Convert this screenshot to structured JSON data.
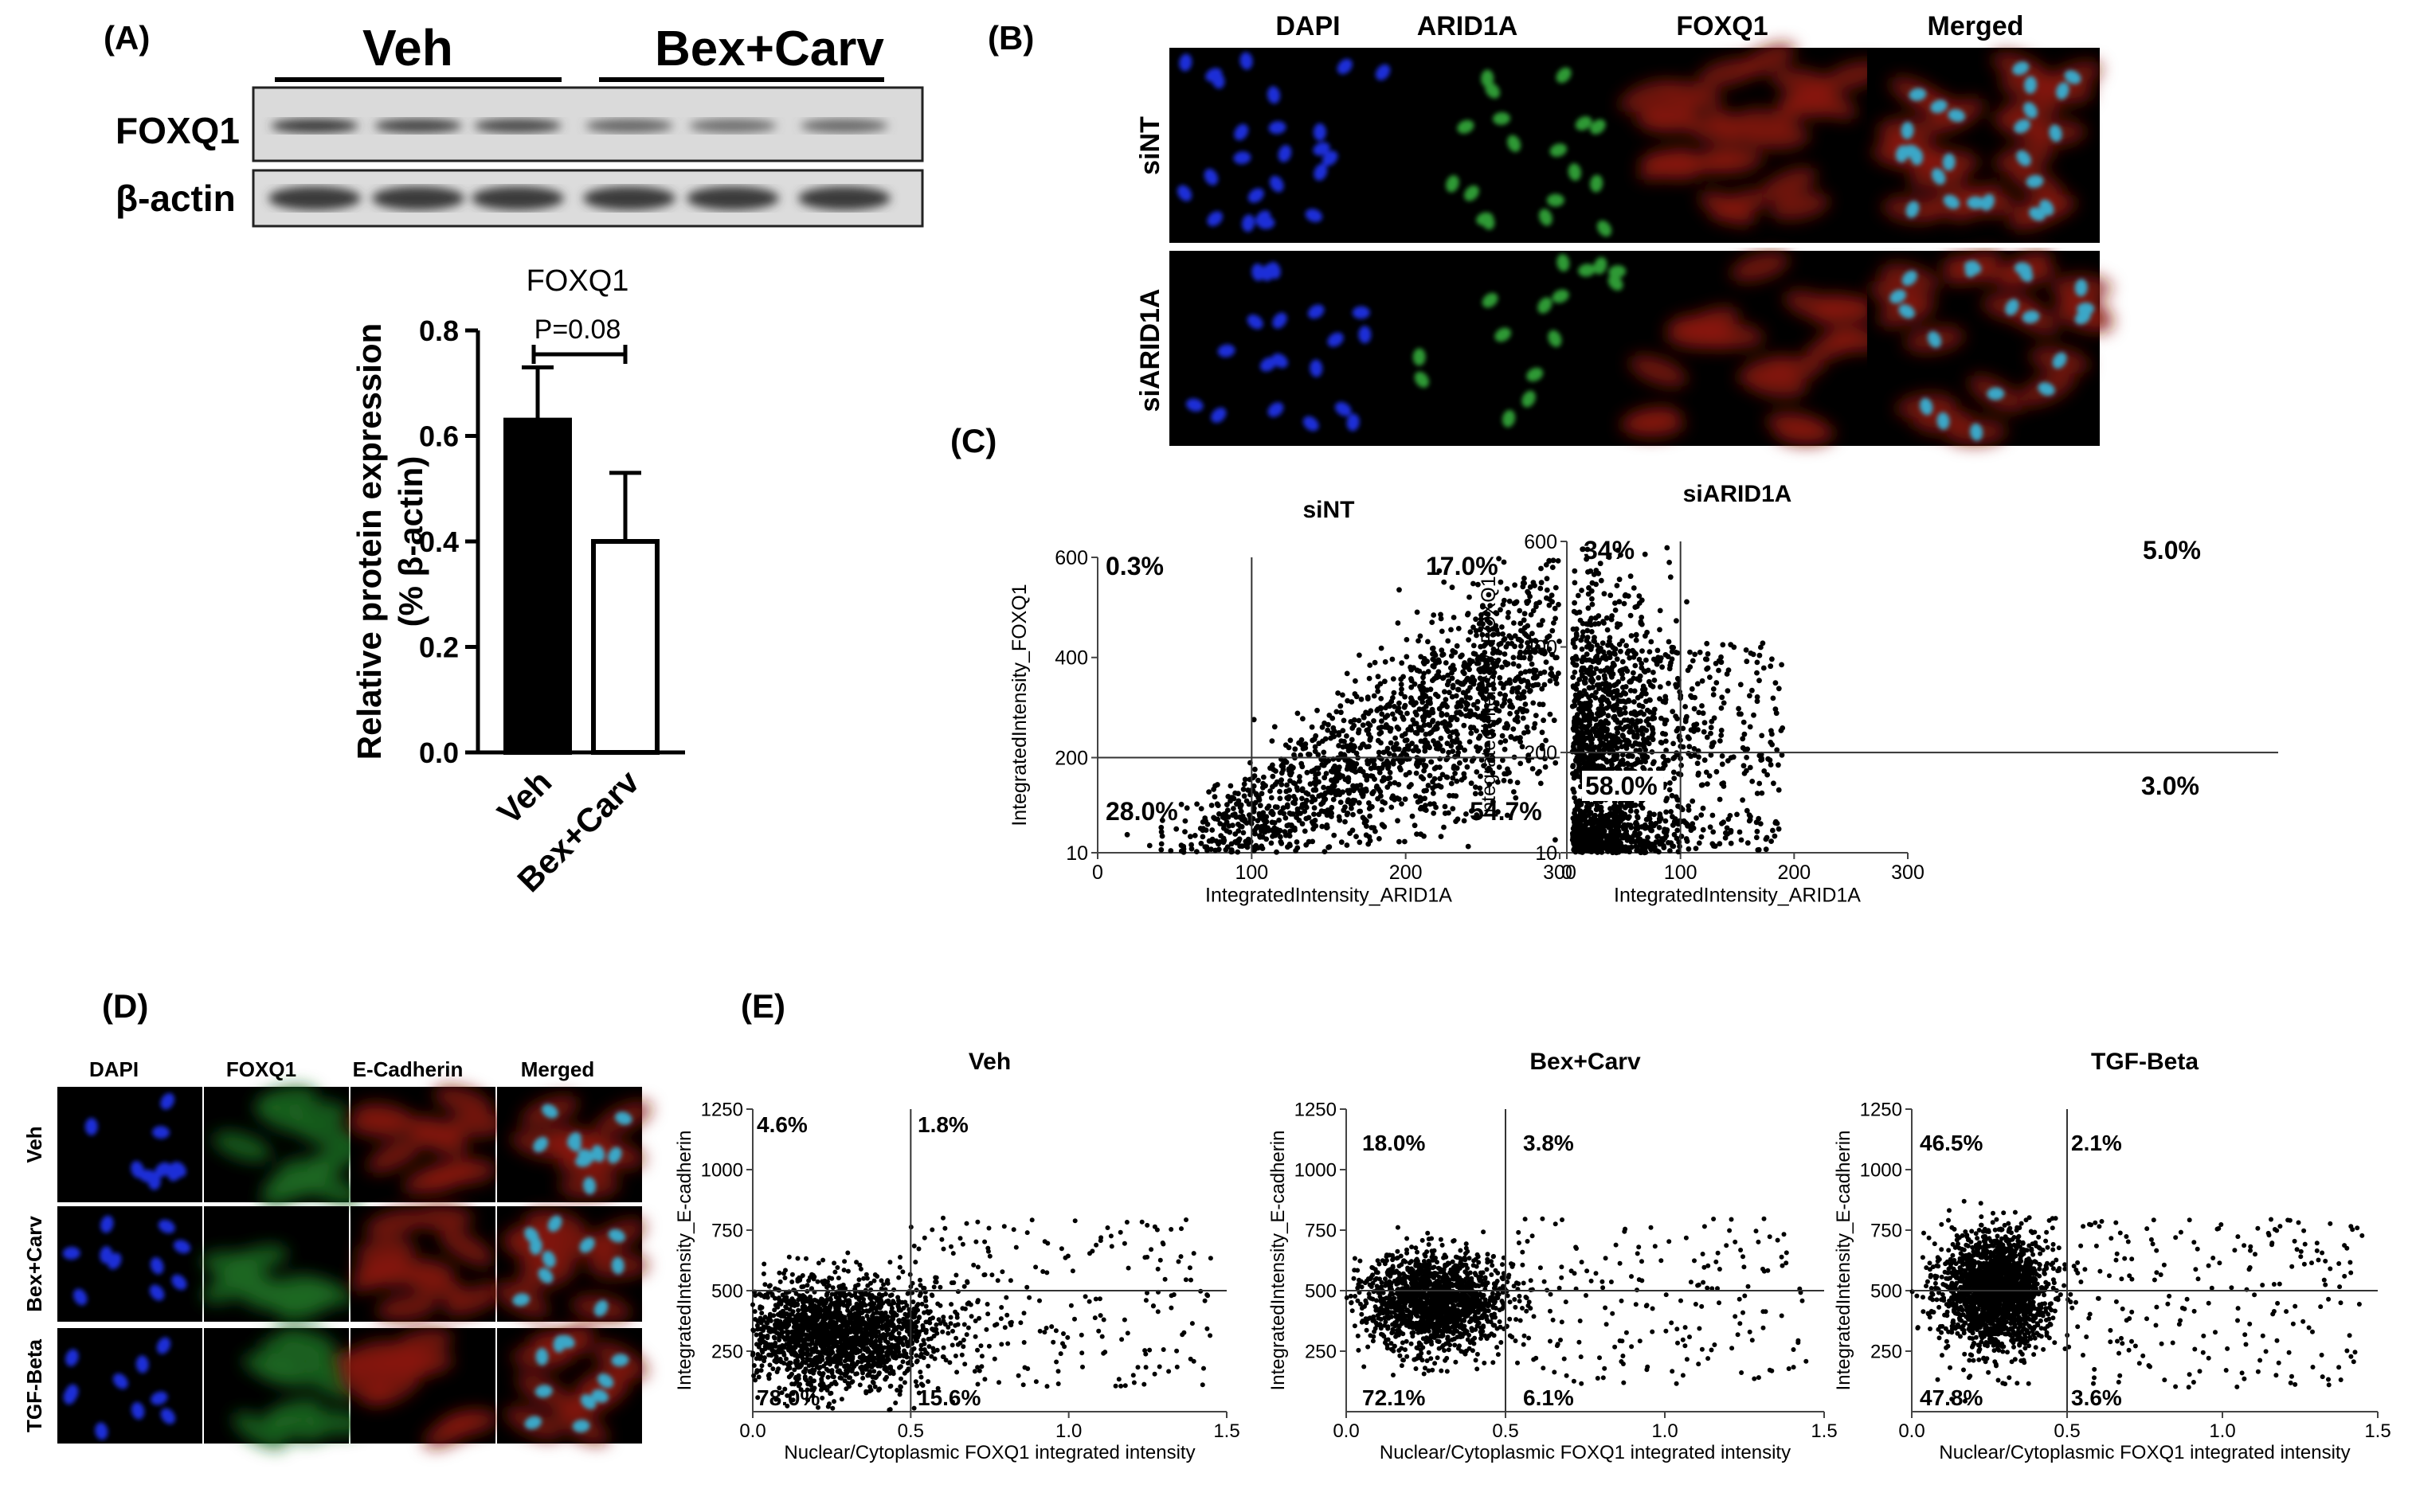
{
  "panels": {
    "A": "(A)",
    "B": "(B)",
    "C": "(C)",
    "D": "(D)",
    "E": "(E)"
  },
  "blot": {
    "group_left": "Veh",
    "group_right": "Bex+Carv",
    "row1": "FOXQ1",
    "row2": "β-actin"
  },
  "panelB": {
    "columns": [
      "DAPI",
      "ARID1A",
      "FOXQ1",
      "Merged"
    ],
    "rows": [
      "siNT",
      "siARID1A"
    ]
  },
  "panelD": {
    "columns": [
      "DAPI",
      "FOXQ1",
      "E-Cadherin",
      "Merged"
    ],
    "rows": [
      "Veh",
      "Bex+Carv",
      "TGF-Beta"
    ]
  },
  "colors": {
    "dapi": "#1c2dd8",
    "green": "#2f9a35",
    "red": "#b8231a",
    "black": "#000000"
  },
  "chart_data": [
    {
      "id": "A-bar",
      "type": "bar",
      "title": "FOXQ1",
      "categories": [
        "Veh",
        "Bex+Carv"
      ],
      "values": [
        0.63,
        0.4
      ],
      "errors": [
        0.1,
        0.13
      ],
      "fill": [
        "#000000",
        "#ffffff"
      ],
      "ylabel_line1": "Relative protein expression",
      "ylabel_line2": "(% β-actin)",
      "ylim": [
        0,
        0.8
      ],
      "yticks": [
        "0.0",
        "0.2",
        "0.4",
        "0.6",
        "0.8"
      ],
      "annotation": "P=0.08"
    },
    {
      "id": "C-siNT",
      "type": "scatter",
      "title": "siNT",
      "xlabel": "IntegratedIntensity_ARID1A",
      "ylabel": "IntegratedIntensity_FOXQ1",
      "xlim": [
        0,
        300
      ],
      "ylim": [
        10,
        600
      ],
      "xticks": [
        "0",
        "100",
        "200",
        "300"
      ],
      "yticks": [
        "10",
        "200",
        "400",
        "600"
      ],
      "gates": {
        "x": 100,
        "y": 200
      },
      "quadrants": {
        "upper_left": "0.3%",
        "upper_right": "17.0%",
        "lower_left": "28.0%",
        "lower_right": "54.7%"
      },
      "n_points": 1800
    },
    {
      "id": "C-siARID1A",
      "type": "scatter",
      "title": "siARID1A",
      "xlabel": "IntegratedIntensity_ARID1A",
      "ylabel": "IntegratedIntensity_FOXQ1",
      "xlim": [
        0,
        300
      ],
      "ylim": [
        10,
        600
      ],
      "xticks": [
        "0",
        "100",
        "200",
        "300"
      ],
      "yticks": [
        "10",
        "200",
        "400",
        "600"
      ],
      "gates": {
        "x": 100,
        "y": 200
      },
      "quadrants": {
        "upper_left": "34%",
        "upper_right": "5.0%",
        "lower_left": "58.0%",
        "lower_right": "3.0%"
      },
      "n_points": 1800
    },
    {
      "id": "E-Veh",
      "type": "scatter",
      "title": "Veh",
      "xlabel": "Nuclear/Cytoplasmic FOXQ1 integrated intensity",
      "ylabel": "IntegratedIntensity_E-cadherin",
      "xlim": [
        0,
        1.5
      ],
      "ylim": [
        0,
        1250
      ],
      "xticks": [
        "0.0",
        "0.5",
        "1.0",
        "1.5"
      ],
      "yticks": [
        "250",
        "500",
        "750",
        "1000",
        "1250"
      ],
      "gates": {
        "x": 0.5,
        "y": 500
      },
      "quadrants": {
        "upper_left": "4.6%",
        "upper_right": "1.8%",
        "lower_left": "78.0%",
        "lower_right": "15.6%"
      },
      "n_points": 2200
    },
    {
      "id": "E-BexCarv",
      "type": "scatter",
      "title": "Bex+Carv",
      "xlabel": "Nuclear/Cytoplasmic FOXQ1 integrated intensity",
      "ylabel": "IntegratedIntensity_E-cadherin",
      "xlim": [
        0,
        1.5
      ],
      "ylim": [
        0,
        1250
      ],
      "xticks": [
        "0.0",
        "0.5",
        "1.0",
        "1.5"
      ],
      "yticks": [
        "250",
        "500",
        "750",
        "1000",
        "1250"
      ],
      "gates": {
        "x": 0.5,
        "y": 500
      },
      "quadrants": {
        "upper_left": "18.0%",
        "upper_right": "3.8%",
        "lower_left": "72.1%",
        "lower_right": "6.1%"
      },
      "n_points": 1800
    },
    {
      "id": "E-TGF",
      "type": "scatter",
      "title": "TGF-Beta",
      "xlabel": "Nuclear/Cytoplasmic FOXQ1 integrated intensity",
      "ylabel": "IntegratedIntensity_E-cadherin",
      "xlim": [
        0,
        1.5
      ],
      "ylim": [
        0,
        1250
      ],
      "xticks": [
        "0.0",
        "0.5",
        "1.0",
        "1.5"
      ],
      "yticks": [
        "250",
        "500",
        "750",
        "1000",
        "1250"
      ],
      "gates": {
        "x": 0.5,
        "y": 500
      },
      "quadrants": {
        "upper_left": "46.5%",
        "upper_right": "2.1%",
        "lower_left": "47.8%",
        "lower_right": "3.6%"
      },
      "n_points": 2200
    }
  ]
}
